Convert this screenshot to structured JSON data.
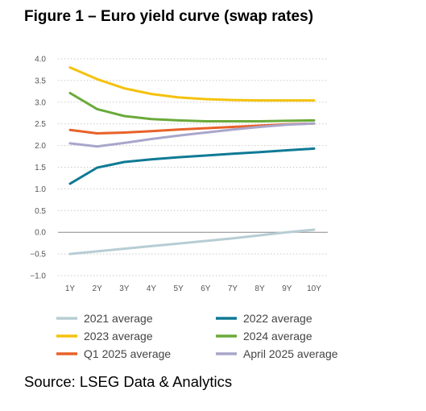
{
  "title": "Figure 1 – Euro yield curve (swap rates)",
  "source": "Source: LSEG Data & Analytics",
  "chart_data": {
    "type": "line",
    "x": [
      "1Y",
      "2Y",
      "3Y",
      "4Y",
      "5Y",
      "6Y",
      "7Y",
      "8Y",
      "9Y",
      "10Y"
    ],
    "y_ticks": [
      "4.0",
      "3.5",
      "3.0",
      "2.5",
      "2.0",
      "1.5",
      "1.0",
      "0.5",
      "0.0",
      "−0.5",
      "−1.0"
    ],
    "ylim": [
      -1.0,
      4.0
    ],
    "grid": "horizontal dotted",
    "legend_position": "bottom",
    "series": [
      {
        "name": "2021 average",
        "color": "#b7cdd4",
        "values": [
          -0.5,
          -0.44,
          -0.38,
          -0.32,
          -0.26,
          -0.2,
          -0.14,
          -0.07,
          0.0,
          0.06
        ]
      },
      {
        "name": "2022 average",
        "color": "#0f7a95",
        "values": [
          1.12,
          1.49,
          1.62,
          1.68,
          1.73,
          1.77,
          1.81,
          1.85,
          1.89,
          1.93
        ]
      },
      {
        "name": "2023 average",
        "color": "#f4c20d",
        "values": [
          3.8,
          3.53,
          3.32,
          3.19,
          3.11,
          3.07,
          3.05,
          3.04,
          3.04,
          3.04
        ]
      },
      {
        "name": "2024 average",
        "color": "#6aaa3a",
        "values": [
          3.21,
          2.84,
          2.68,
          2.61,
          2.58,
          2.56,
          2.56,
          2.56,
          2.57,
          2.58
        ]
      },
      {
        "name": "Q1 2025 average",
        "color": "#e8622a",
        "values": [
          2.36,
          2.28,
          2.3,
          2.33,
          2.37,
          2.4,
          2.43,
          2.46,
          2.49,
          2.51
        ]
      },
      {
        "name": "April 2025 average",
        "color": "#a9a6cb",
        "values": [
          2.05,
          1.98,
          2.06,
          2.15,
          2.23,
          2.3,
          2.37,
          2.43,
          2.48,
          2.51
        ]
      }
    ]
  }
}
